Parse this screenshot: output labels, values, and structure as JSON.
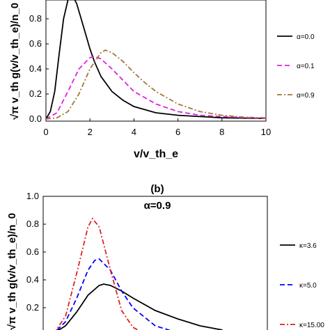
{
  "chart_data": [
    {
      "type": "line",
      "panel_label": "",
      "title": "",
      "xlabel": "v/v_th_e",
      "ylabel": "√π v_th g(v/v_th_e)/n_0",
      "xlim": [
        0,
        10
      ],
      "ylim": [
        0,
        1.0
      ],
      "x_ticks": [
        "0",
        "2",
        "4",
        "6",
        "8",
        "10"
      ],
      "y_ticks": [
        "0.0",
        "0.2",
        "0.4",
        "0.6",
        "0.8"
      ],
      "legend_position": "right",
      "series": [
        {
          "name": "α=0.0",
          "color": "#000000",
          "style": "solid",
          "x": [
            0,
            0.2,
            0.4,
            0.6,
            0.8,
            1.0,
            1.2,
            1.4,
            1.6,
            1.8,
            2.0,
            2.2,
            2.5,
            3.0,
            3.5,
            4.0,
            5.0,
            6.0,
            7.0,
            8.0,
            10.0
          ],
          "y": [
            0,
            0.06,
            0.22,
            0.52,
            0.8,
            0.95,
            0.99,
            0.92,
            0.8,
            0.68,
            0.56,
            0.46,
            0.34,
            0.22,
            0.15,
            0.1,
            0.05,
            0.03,
            0.02,
            0.01,
            0.005
          ]
        },
        {
          "name": "α=0.1",
          "color": "#e020e0",
          "style": "dashed",
          "x": [
            0,
            0.5,
            1.0,
            1.5,
            2.0,
            2.2,
            2.5,
            3.0,
            3.5,
            4.0,
            5.0,
            6.0,
            7.0,
            8.0,
            10.0
          ],
          "y": [
            0,
            0.05,
            0.22,
            0.4,
            0.49,
            0.5,
            0.48,
            0.4,
            0.31,
            0.22,
            0.12,
            0.06,
            0.03,
            0.02,
            0.005
          ]
        },
        {
          "name": "α=0.9",
          "color": "#a07838",
          "style": "dashdot",
          "x": [
            0,
            0.5,
            1.0,
            1.5,
            2.0,
            2.5,
            2.7,
            3.0,
            3.5,
            4.0,
            4.5,
            5.0,
            6.0,
            7.0,
            8.0,
            9.0,
            10.0
          ],
          "y": [
            0,
            0.01,
            0.06,
            0.2,
            0.4,
            0.53,
            0.55,
            0.53,
            0.46,
            0.37,
            0.29,
            0.22,
            0.12,
            0.06,
            0.03,
            0.015,
            0.01
          ]
        }
      ]
    },
    {
      "type": "line",
      "panel_label": "(b)",
      "title": "α=0.9",
      "xlabel": "",
      "ylabel": "√π v_th g(v/v_th_e)/n_0",
      "xlim": [
        0,
        10
      ],
      "ylim": [
        0,
        1.0
      ],
      "x_ticks": [],
      "y_ticks": [
        "0.2",
        "0.4",
        "0.6",
        "0.8",
        "1.0"
      ],
      "legend_position": "right",
      "series": [
        {
          "name": "κ=3.6",
          "color": "#000000",
          "style": "solid",
          "x": [
            0,
            0.5,
            1.0,
            1.5,
            2.0,
            2.5,
            2.7,
            3.0,
            3.5,
            4.0,
            5.0,
            6.0,
            7.0,
            8.0
          ],
          "y": [
            0,
            0.02,
            0.07,
            0.17,
            0.29,
            0.36,
            0.37,
            0.36,
            0.32,
            0.27,
            0.18,
            0.12,
            0.07,
            0.04
          ]
        },
        {
          "name": "κ=5.0",
          "color": "#0000ff",
          "style": "dashed",
          "x": [
            0,
            0.5,
            1.0,
            1.5,
            2.0,
            2.3,
            2.5,
            3.0,
            3.5,
            4.0,
            5.0,
            6.0
          ],
          "y": [
            0,
            0.02,
            0.1,
            0.27,
            0.47,
            0.54,
            0.55,
            0.47,
            0.32,
            0.2,
            0.07,
            0.02
          ]
        },
        {
          "name": "κ=15.00",
          "color": "#e02020",
          "style": "dashdot",
          "x": [
            0,
            0.5,
            1.0,
            1.5,
            2.0,
            2.2,
            2.5,
            3.0,
            3.5,
            4.0,
            4.5,
            5.0
          ],
          "y": [
            0,
            0.02,
            0.14,
            0.45,
            0.78,
            0.84,
            0.78,
            0.47,
            0.18,
            0.06,
            0.015,
            0.003
          ]
        }
      ]
    }
  ]
}
